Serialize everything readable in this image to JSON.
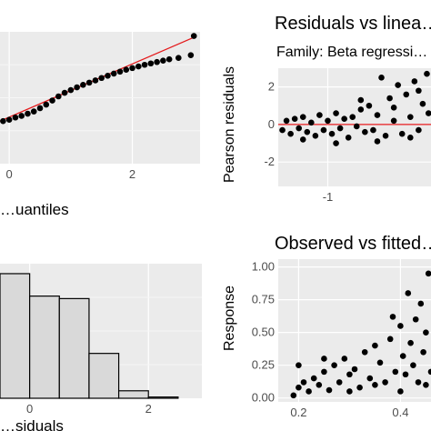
{
  "chart_data": [
    {
      "type": "scatter",
      "panel": "top-left",
      "title": "",
      "xlabel": "…uantiles",
      "ylabel": "",
      "x_ticks": [
        "0",
        "2"
      ],
      "xlim": [
        -0.15,
        3.1
      ],
      "ylim": [
        -1.6,
        3.2
      ],
      "grid": true,
      "reference_line": {
        "x": [
          -0.15,
          3.0
        ],
        "y": [
          -0.05,
          3.0
        ],
        "color": "#e41a1c"
      },
      "series": [
        {
          "values": [
            [
              -0.1,
              -0.05
            ],
            [
              0.0,
              0.0
            ],
            [
              0.1,
              0.08
            ],
            [
              0.2,
              0.14
            ],
            [
              0.3,
              0.22
            ],
            [
              0.4,
              0.3
            ],
            [
              0.5,
              0.42
            ],
            [
              0.6,
              0.55
            ],
            [
              0.7,
              0.7
            ],
            [
              0.8,
              0.85
            ],
            [
              0.9,
              0.98
            ],
            [
              1.0,
              1.08
            ],
            [
              1.1,
              1.18
            ],
            [
              1.2,
              1.27
            ],
            [
              1.3,
              1.35
            ],
            [
              1.4,
              1.43
            ],
            [
              1.5,
              1.52
            ],
            [
              1.6,
              1.6
            ],
            [
              1.7,
              1.68
            ],
            [
              1.8,
              1.75
            ],
            [
              1.9,
              1.82
            ],
            [
              2.0,
              1.88
            ],
            [
              2.1,
              1.94
            ],
            [
              2.2,
              2.0
            ],
            [
              2.3,
              2.05
            ],
            [
              2.4,
              2.1
            ],
            [
              2.5,
              2.15
            ],
            [
              2.6,
              2.2
            ],
            [
              2.75,
              2.25
            ],
            [
              2.95,
              2.35
            ],
            [
              3.0,
              3.05
            ]
          ]
        }
      ]
    },
    {
      "type": "scatter",
      "panel": "top-right",
      "title": "Residuals vs linea…",
      "subtitle": "Family: Beta regressi…",
      "xlabel": "",
      "ylabel": "Pearson residuals",
      "x_ticks": [
        "-1"
      ],
      "y_ticks": [
        "2",
        "0",
        "-2"
      ],
      "xlim": [
        -1.6,
        0.25
      ],
      "ylim": [
        -3.3,
        3.0
      ],
      "grid": true,
      "reference_line": {
        "y": 0,
        "color": "#e41a1c"
      },
      "series": [
        {
          "values": [
            [
              -1.55,
              -0.3
            ],
            [
              -1.5,
              0.2
            ],
            [
              -1.45,
              -0.5
            ],
            [
              -1.4,
              0.3
            ],
            [
              -1.35,
              -0.2
            ],
            [
              -1.3,
              0.4
            ],
            [
              -1.25,
              -0.4
            ],
            [
              -1.2,
              0.1
            ],
            [
              -1.15,
              -0.6
            ],
            [
              -1.1,
              0.5
            ],
            [
              -1.05,
              -0.3
            ],
            [
              -1.0,
              0.2
            ],
            [
              -0.95,
              -0.5
            ],
            [
              -0.9,
              0.6
            ],
            [
              -0.85,
              -0.2
            ],
            [
              -0.8,
              0.3
            ],
            [
              -0.75,
              -0.7
            ],
            [
              -0.7,
              0.4
            ],
            [
              -0.65,
              -0.1
            ],
            [
              -0.6,
              0.8
            ],
            [
              -0.55,
              -0.4
            ],
            [
              -0.5,
              1.0
            ],
            [
              -0.45,
              -0.3
            ],
            [
              -0.4,
              0.5
            ],
            [
              -0.35,
              2.5
            ],
            [
              -0.3,
              -0.6
            ],
            [
              -0.25,
              1.4
            ],
            [
              -0.2,
              0.2
            ],
            [
              -0.15,
              2.1
            ],
            [
              -0.1,
              -0.5
            ],
            [
              -0.05,
              1.6
            ],
            [
              0.0,
              0.4
            ],
            [
              0.05,
              2.3
            ],
            [
              0.1,
              -0.3
            ],
            [
              0.15,
              1.1
            ],
            [
              0.2,
              2.7
            ],
            [
              0.22,
              0.6
            ],
            [
              -1.3,
              -0.8
            ],
            [
              -0.9,
              -1.0
            ],
            [
              -0.6,
              1.3
            ],
            [
              -0.4,
              -0.9
            ],
            [
              -0.2,
              0.9
            ],
            [
              0.0,
              -0.7
            ],
            [
              0.1,
              1.8
            ]
          ]
        }
      ]
    },
    {
      "type": "bar",
      "panel": "bottom-left",
      "title": "",
      "xlabel": "…siduals",
      "ylabel": "",
      "x_ticks": [
        "0",
        "2"
      ],
      "categories": [
        "-0.25",
        "0.25",
        "0.75",
        "1.25",
        "1.75",
        "2.25"
      ],
      "values": [
        100,
        82,
        80,
        36,
        6,
        1
      ],
      "xlim": [
        -0.5,
        2.9
      ],
      "ylim": [
        0,
        108
      ],
      "grid": true,
      "bar_color": "#d9d9d9"
    },
    {
      "type": "scatter",
      "panel": "bottom-right",
      "title": "Observed vs fitted…",
      "xlabel": "",
      "ylabel": "Response",
      "x_ticks": [
        "0.2",
        "0.4"
      ],
      "y_ticks": [
        "1.00",
        "0.75",
        "0.50",
        "0.25",
        "0.00"
      ],
      "xlim": [
        0.16,
        0.46
      ],
      "ylim": [
        -0.03,
        1.06
      ],
      "grid": true,
      "series": [
        {
          "values": [
            [
              0.19,
              0.02
            ],
            [
              0.2,
              0.08
            ],
            [
              0.21,
              0.12
            ],
            [
              0.22,
              0.05
            ],
            [
              0.23,
              0.15
            ],
            [
              0.24,
              0.1
            ],
            [
              0.25,
              0.2
            ],
            [
              0.26,
              0.06
            ],
            [
              0.27,
              0.25
            ],
            [
              0.28,
              0.12
            ],
            [
              0.29,
              0.3
            ],
            [
              0.3,
              0.18
            ],
            [
              0.31,
              0.22
            ],
            [
              0.32,
              0.08
            ],
            [
              0.33,
              0.35
            ],
            [
              0.34,
              0.15
            ],
            [
              0.35,
              0.4
            ],
            [
              0.36,
              0.27
            ],
            [
              0.37,
              0.12
            ],
            [
              0.38,
              0.45
            ],
            [
              0.385,
              0.62
            ],
            [
              0.39,
              0.2
            ],
            [
              0.4,
              0.55
            ],
            [
              0.405,
              0.32
            ],
            [
              0.41,
              0.18
            ],
            [
              0.415,
              0.8
            ],
            [
              0.42,
              0.42
            ],
            [
              0.425,
              0.25
            ],
            [
              0.43,
              0.6
            ],
            [
              0.435,
              0.12
            ],
            [
              0.44,
              0.72
            ],
            [
              0.445,
              0.35
            ],
            [
              0.45,
              0.5
            ],
            [
              0.455,
              0.95
            ],
            [
              0.46,
              0.2
            ],
            [
              0.2,
              0.25
            ],
            [
              0.25,
              0.3
            ],
            [
              0.3,
              0.05
            ],
            [
              0.35,
              0.1
            ],
            [
              0.4,
              0.05
            ],
            [
              0.45,
              0.1
            ]
          ]
        }
      ]
    }
  ]
}
